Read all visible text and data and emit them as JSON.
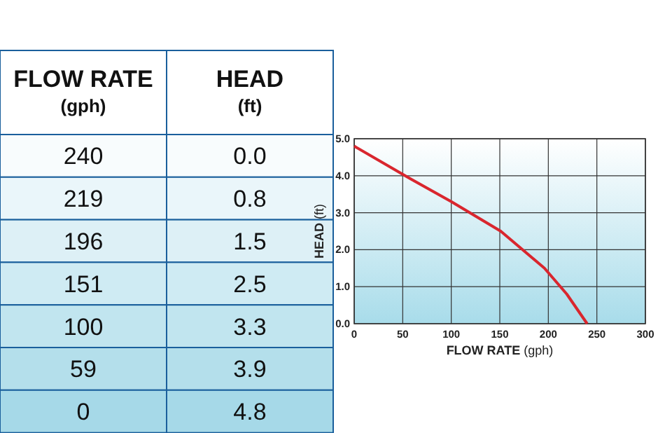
{
  "chart_data": [
    {
      "type": "other",
      "xlabel": "FLOW RATE (gph)",
      "ylabel": "HEAD (ft)",
      "categories": [
        "240",
        "219",
        "196",
        "151",
        "100",
        "59",
        "0"
      ],
      "value_labels": [
        "0.0",
        "0.8",
        "1.5",
        "2.5",
        "3.3",
        "3.9",
        "4.8"
      ]
    },
    {
      "type": "line",
      "xlabel": "FLOW RATE (gph)",
      "ylabel": "HEAD (ft)",
      "x": [
        240,
        219,
        196,
        151,
        100,
        59,
        0
      ],
      "series": [
        {
          "color": "#d9262e",
          "values": [
            0.0,
            0.8,
            1.5,
            2.5,
            3.3,
            3.9,
            4.8
          ]
        }
      ],
      "xlim": [
        0,
        300
      ],
      "xticks": [
        0,
        50,
        100,
        150,
        200,
        250,
        300
      ],
      "ylim": [
        0,
        5
      ],
      "yticks": [
        {
          "value": 0,
          "label": "0.0"
        },
        {
          "value": 1,
          "label": "1.0"
        },
        {
          "value": 2,
          "label": "2.0"
        },
        {
          "value": 3,
          "label": "3.0"
        },
        {
          "value": 4,
          "label": "4.0"
        },
        {
          "value": 5,
          "label": "5.0"
        }
      ],
      "grid": true,
      "marker": "none",
      "line_style": "solid"
    }
  ]
}
